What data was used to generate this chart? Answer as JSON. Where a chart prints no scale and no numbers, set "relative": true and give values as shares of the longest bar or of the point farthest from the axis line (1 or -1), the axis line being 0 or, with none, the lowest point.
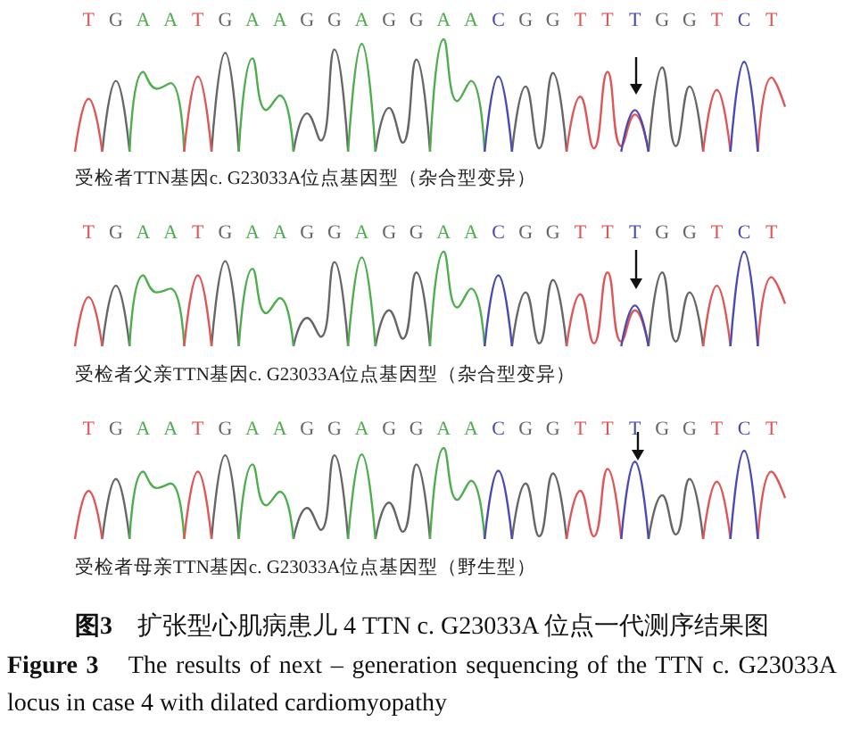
{
  "chart_data": [
    {
      "type": "line",
      "relative": true,
      "xlabel": "受检者TTN基因c. G23033A位点基因型（杂合型变异）",
      "categories": [
        null,
        "T",
        null,
        "G",
        null,
        "A",
        null,
        "A",
        null,
        "T",
        null,
        "G",
        null,
        "A",
        null,
        "A",
        null,
        "G",
        null,
        "G",
        null,
        "A",
        null,
        "G",
        null,
        "G",
        null,
        "A",
        null,
        "A",
        null,
        "C",
        null,
        "G",
        null,
        "G",
        null,
        "T",
        null,
        "T",
        null,
        "T",
        null,
        "G",
        null,
        "G",
        null,
        "T",
        null,
        "C",
        null,
        "T",
        null
      ],
      "series": [
        {
          "color": "#666666",
          "values": [
            null,
            null,
            0,
            0.63,
            0,
            null,
            null,
            null,
            null,
            null,
            0,
            0.88,
            0,
            null,
            null,
            null,
            0,
            0.34,
            0.1,
            0.91,
            0,
            null,
            0,
            0.39,
            0.08,
            0.82,
            0,
            null,
            null,
            null,
            null,
            null,
            0,
            0.58,
            0.03,
            0.7,
            0,
            null,
            null,
            null,
            null,
            null,
            0,
            0.75,
            0.05,
            0.58,
            0,
            null,
            null,
            null,
            null,
            null,
            null
          ]
        },
        {
          "color": "#4cae4c",
          "values": [
            null,
            null,
            null,
            null,
            0,
            0.71,
            0.56,
            0.61,
            0,
            null,
            null,
            null,
            0,
            0.83,
            0.37,
            0.5,
            0,
            null,
            null,
            null,
            0,
            0.96,
            0,
            null,
            null,
            null,
            0,
            1,
            0.45,
            0.63,
            0,
            null,
            null,
            null,
            null,
            null,
            null,
            null,
            null,
            null,
            null,
            null,
            null,
            null,
            null,
            null,
            null,
            null,
            null,
            null,
            null,
            null,
            null
          ]
        },
        {
          "color": "#e05555",
          "values": [
            0,
            0.47,
            0,
            null,
            null,
            null,
            null,
            null,
            0,
            0.67,
            0,
            null,
            null,
            null,
            null,
            null,
            null,
            null,
            null,
            null,
            null,
            null,
            null,
            null,
            null,
            null,
            null,
            null,
            null,
            null,
            null,
            null,
            null,
            null,
            null,
            null,
            0,
            0.49,
            0.03,
            0.71,
            0.05,
            0.33,
            0,
            null,
            null,
            null,
            0,
            0.55,
            0,
            null,
            0,
            0.66,
            0.4
          ]
        },
        {
          "color": "#4a4ab4",
          "values": [
            null,
            null,
            null,
            null,
            null,
            null,
            null,
            null,
            null,
            null,
            null,
            null,
            null,
            null,
            null,
            null,
            null,
            null,
            null,
            null,
            null,
            null,
            null,
            null,
            null,
            null,
            null,
            null,
            null,
            null,
            0,
            0.67,
            0,
            null,
            null,
            null,
            null,
            null,
            null,
            null,
            0,
            0.37,
            0,
            null,
            null,
            null,
            null,
            null,
            0,
            0.8,
            0,
            null,
            null
          ]
        }
      ]
    },
    {
      "type": "line",
      "relative": true,
      "xlabel": "受检者父亲TTN基因c. G23033A位点基因型（杂合型变异）",
      "categories": [
        null,
        "T",
        null,
        "G",
        null,
        "A",
        null,
        "A",
        null,
        "T",
        null,
        "G",
        null,
        "A",
        null,
        "A",
        null,
        "G",
        null,
        "G",
        null,
        "A",
        null,
        "G",
        null,
        "G",
        null,
        "A",
        null,
        "A",
        null,
        "C",
        null,
        "G",
        null,
        "G",
        null,
        "T",
        null,
        "T",
        null,
        "T",
        null,
        "G",
        null,
        "G",
        null,
        "T",
        null,
        "C",
        null,
        "T",
        null
      ],
      "series": [
        {
          "color": "#666666",
          "values": [
            null,
            null,
            0,
            0.64,
            0,
            null,
            null,
            null,
            null,
            null,
            0,
            0.9,
            0,
            null,
            null,
            null,
            0,
            0.3,
            0.1,
            0.89,
            0,
            null,
            0,
            0.38,
            0.08,
            0.78,
            0,
            null,
            null,
            null,
            null,
            null,
            0,
            0.57,
            0.03,
            0.7,
            0,
            null,
            null,
            null,
            null,
            null,
            0,
            0.78,
            0.05,
            0.57,
            0,
            null,
            null,
            null,
            null,
            null,
            null
          ]
        },
        {
          "color": "#4cae4c",
          "values": [
            null,
            null,
            null,
            null,
            0,
            0.75,
            0.57,
            0.61,
            0,
            null,
            null,
            null,
            0,
            0.82,
            0.35,
            0.51,
            0,
            null,
            null,
            null,
            0,
            0.94,
            0,
            null,
            null,
            null,
            0,
            1,
            0.41,
            0.61,
            0,
            null,
            null,
            null,
            null,
            null,
            null,
            null,
            null,
            null,
            null,
            null,
            null,
            null,
            null,
            null,
            null,
            null,
            null,
            null,
            null,
            null,
            null
          ]
        },
        {
          "color": "#e05555",
          "values": [
            0,
            0.52,
            0,
            null,
            null,
            null,
            null,
            null,
            0,
            0.75,
            0,
            null,
            null,
            null,
            null,
            null,
            null,
            null,
            null,
            null,
            null,
            null,
            null,
            null,
            null,
            null,
            null,
            null,
            null,
            null,
            null,
            null,
            null,
            null,
            null,
            null,
            0,
            0.55,
            0.03,
            0.78,
            0.05,
            0.38,
            0,
            null,
            null,
            null,
            0,
            0.64,
            0,
            null,
            0,
            0.73,
            0.45
          ]
        },
        {
          "color": "#4a4ab4",
          "values": [
            null,
            null,
            null,
            null,
            null,
            null,
            null,
            null,
            null,
            null,
            null,
            null,
            null,
            null,
            null,
            null,
            null,
            null,
            null,
            null,
            null,
            null,
            null,
            null,
            null,
            null,
            null,
            null,
            null,
            null,
            0,
            0.75,
            0,
            null,
            null,
            null,
            null,
            null,
            null,
            null,
            0,
            0.43,
            0,
            null,
            null,
            null,
            null,
            null,
            0,
            1,
            0,
            null,
            null
          ]
        }
      ]
    },
    {
      "type": "line",
      "relative": true,
      "xlabel": "受检者母亲TTN基因c. G23033A位点基因型（野生型）",
      "categories": [
        null,
        "T",
        null,
        "G",
        null,
        "A",
        null,
        "A",
        null,
        "T",
        null,
        "G",
        null,
        "A",
        null,
        "A",
        null,
        "G",
        null,
        "G",
        null,
        "A",
        null,
        "G",
        null,
        "G",
        null,
        "A",
        null,
        "A",
        null,
        "C",
        null,
        "G",
        null,
        "G",
        null,
        "T",
        null,
        "T",
        null,
        "T",
        null,
        "G",
        null,
        "G",
        null,
        "T",
        null,
        "C",
        null,
        "T",
        null
      ],
      "series": [
        {
          "color": "#666666",
          "values": [
            null,
            null,
            0,
            0.66,
            0,
            null,
            null,
            null,
            null,
            null,
            0,
            0.92,
            0,
            null,
            null,
            null,
            0,
            0.34,
            0.1,
            0.92,
            0,
            null,
            0,
            0.4,
            0.08,
            0.82,
            0,
            null,
            null,
            null,
            null,
            null,
            0,
            0.61,
            0.03,
            0.72,
            0,
            null,
            null,
            null,
            null,
            null,
            0,
            0.48,
            0.05,
            0.66,
            0,
            null,
            null,
            null,
            null,
            null,
            null
          ]
        },
        {
          "color": "#4cae4c",
          "values": [
            null,
            null,
            null,
            null,
            0,
            0.74,
            0.56,
            0.61,
            0,
            null,
            null,
            null,
            0,
            0.82,
            0.37,
            0.52,
            0,
            null,
            null,
            null,
            0,
            0.93,
            0,
            null,
            null,
            null,
            0,
            1,
            0.43,
            0.64,
            0,
            null,
            null,
            null,
            null,
            null,
            null,
            null,
            null,
            null,
            null,
            null,
            null,
            null,
            null,
            null,
            null,
            null,
            null,
            null,
            null,
            null,
            null
          ]
        },
        {
          "color": "#e05555",
          "values": [
            0,
            0.53,
            0,
            null,
            null,
            null,
            null,
            null,
            0,
            0.74,
            0,
            null,
            null,
            null,
            null,
            null,
            null,
            null,
            null,
            null,
            null,
            null,
            null,
            null,
            null,
            null,
            null,
            null,
            null,
            null,
            null,
            null,
            null,
            null,
            null,
            null,
            0,
            0.53,
            0.03,
            0.77,
            0,
            null,
            null,
            null,
            null,
            null,
            0,
            0.63,
            0,
            null,
            0,
            0.74,
            0.45
          ]
        },
        {
          "color": "#4a4ab4",
          "values": [
            null,
            null,
            null,
            null,
            null,
            null,
            null,
            null,
            null,
            null,
            null,
            null,
            null,
            null,
            null,
            null,
            null,
            null,
            null,
            null,
            null,
            null,
            null,
            null,
            null,
            null,
            null,
            null,
            null,
            null,
            0,
            0.75,
            0,
            null,
            null,
            null,
            null,
            null,
            null,
            null,
            0,
            0.85,
            0,
            null,
            null,
            null,
            null,
            null,
            0,
            0.97,
            0,
            null,
            null
          ]
        }
      ],
      "annotations": [
        "图3　扩张型心肌病患儿 4 TTN c. G23033A 位点一代测序结果图",
        "Figure 3　The results of next – generation sequencing of the TTN c. G23033A locus in case 4 with dilated cardiomyopathy"
      ]
    }
  ]
}
